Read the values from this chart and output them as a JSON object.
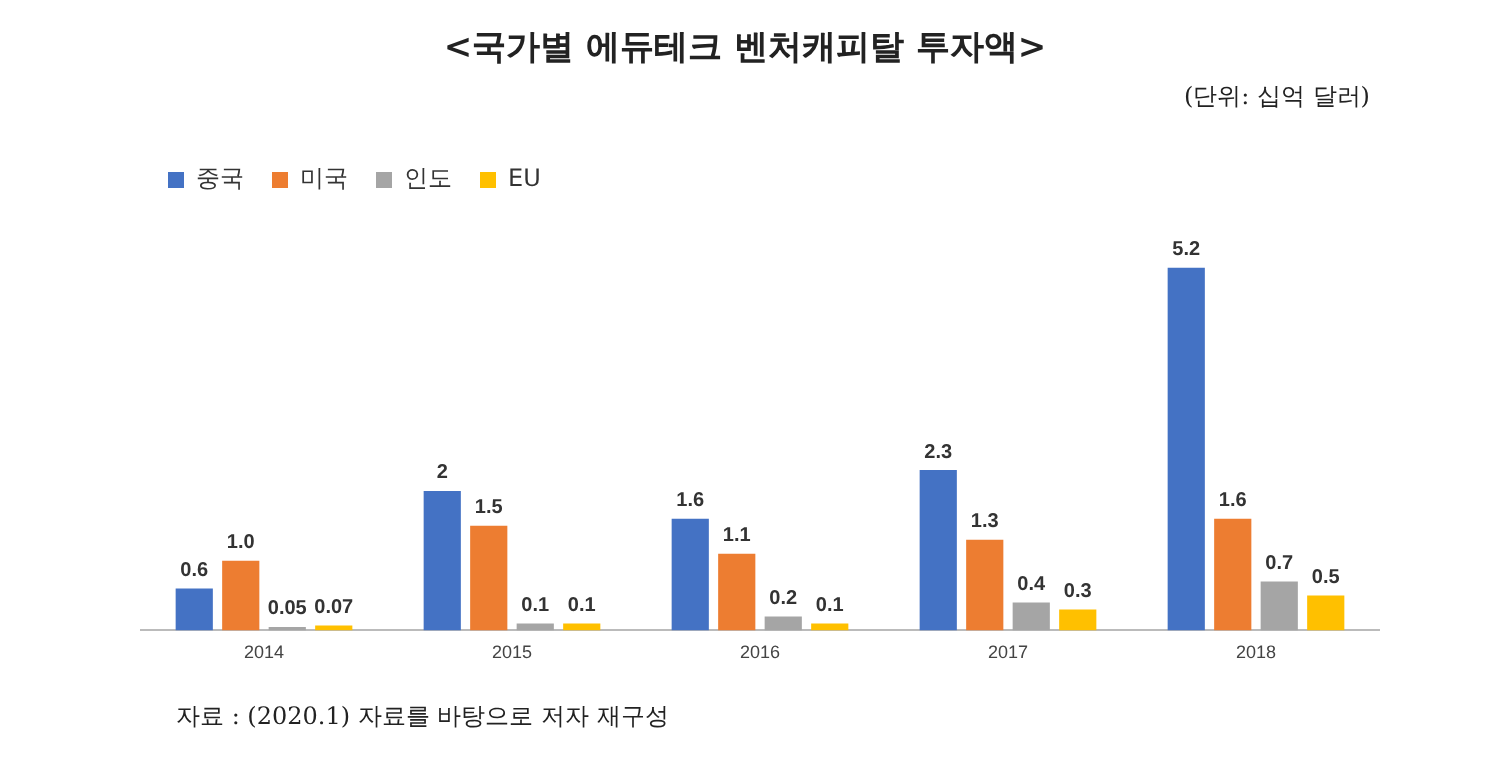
{
  "chart_data": {
    "type": "bar",
    "title": "<국가별 에듀테크 벤처캐피탈 투자액>",
    "subtitle": "(단위: 십억 달러)",
    "annotations": [
      "자료 : (2020.1) 자료를 바탕으로 저자 재구성"
    ],
    "categories": [
      "2014",
      "2015",
      "2016",
      "2017",
      "2018"
    ],
    "series": [
      {
        "name": "중국",
        "color": "#4472c4",
        "values": [
          0.6,
          2,
          1.6,
          2.3,
          5.2
        ],
        "value_labels": [
          "0.6",
          "2",
          "1.6",
          "2.3",
          "5.2"
        ]
      },
      {
        "name": "미국",
        "color": "#ed7d31",
        "values": [
          1.0,
          1.5,
          1.1,
          1.3,
          1.6
        ],
        "value_labels": [
          "1.0",
          "1.5",
          "1.1",
          "1.3",
          "1.6"
        ]
      },
      {
        "name": "인도",
        "color": "#a5a5a5",
        "values": [
          0.05,
          0.1,
          0.2,
          0.4,
          0.7
        ],
        "value_labels": [
          "0.05",
          "0.1",
          "0.2",
          "0.4",
          "0.7"
        ]
      },
      {
        "name": "EU",
        "color": "#ffc000",
        "values": [
          0.07,
          0.1,
          0.1,
          0.3,
          0.5
        ],
        "value_labels": [
          "0.07",
          "0.1",
          "0.1",
          "0.3",
          "0.5"
        ]
      }
    ],
    "legend": "top left",
    "grid": false
  }
}
